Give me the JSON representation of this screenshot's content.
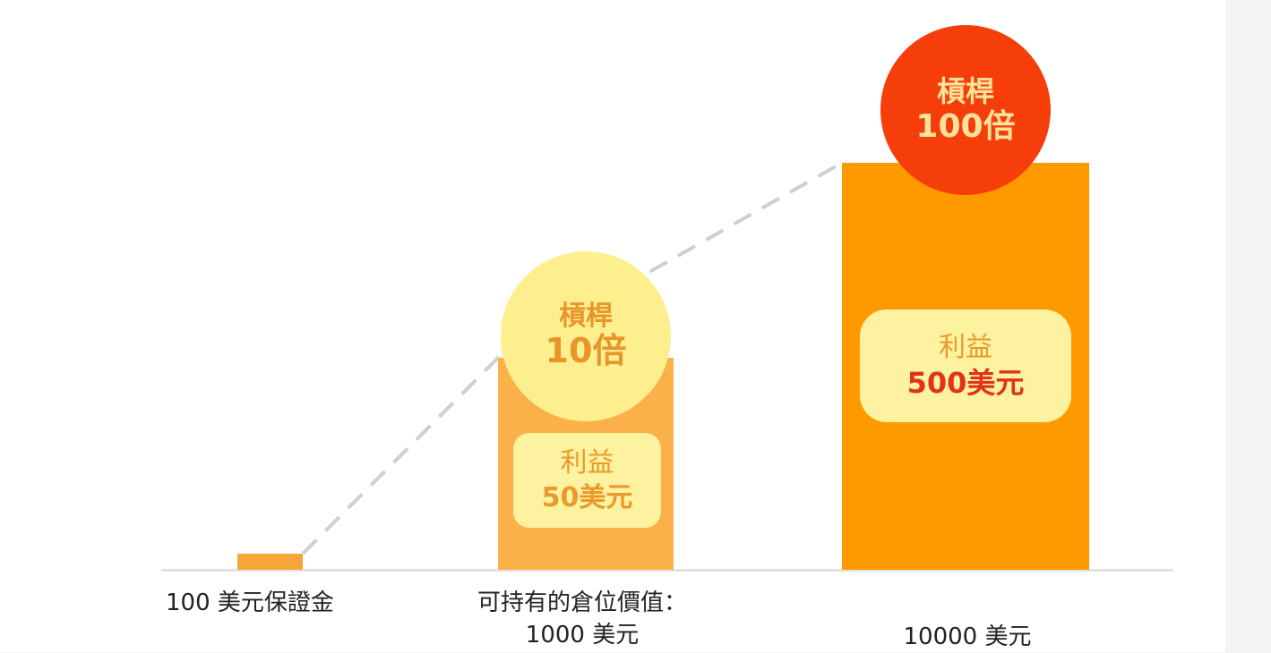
{
  "chart_data": {
    "type": "bar",
    "categories": [
      "100 美元保證金",
      "可持有的倉位價值：\n1000 美元",
      "10000 美元"
    ],
    "values": [
      100,
      1000,
      10000
    ],
    "bars": [
      {
        "label_line1": "100 美元保證金",
        "label_line2": "",
        "leverage_title": "",
        "leverage_value": "",
        "profit_title": "",
        "profit_value": "",
        "color": "#f5a63a"
      },
      {
        "label_line1": "可持有的倉位價值：",
        "label_line2": "1000 美元",
        "leverage_title": "槓桿",
        "leverage_value": "10倍",
        "profit_title": "利益",
        "profit_value": "50美元",
        "color": "#fbb04a"
      },
      {
        "label_line1": "",
        "label_line2": "10000 美元",
        "leverage_title": "槓桿",
        "leverage_value": "100倍",
        "profit_title": "利益",
        "profit_value": "500美元",
        "color": "#ff9900"
      }
    ],
    "colors": {
      "small_circle": "#fdef8e",
      "small_circle_text": "#e8952a",
      "big_circle": "#f63e0a",
      "big_circle_text": "#fde39a",
      "pill": "#fdf2a0",
      "pill_title_text": "#ea9a2d",
      "profit_big_text": "#e0331a",
      "dashed_line": "#cfcfcf"
    }
  }
}
